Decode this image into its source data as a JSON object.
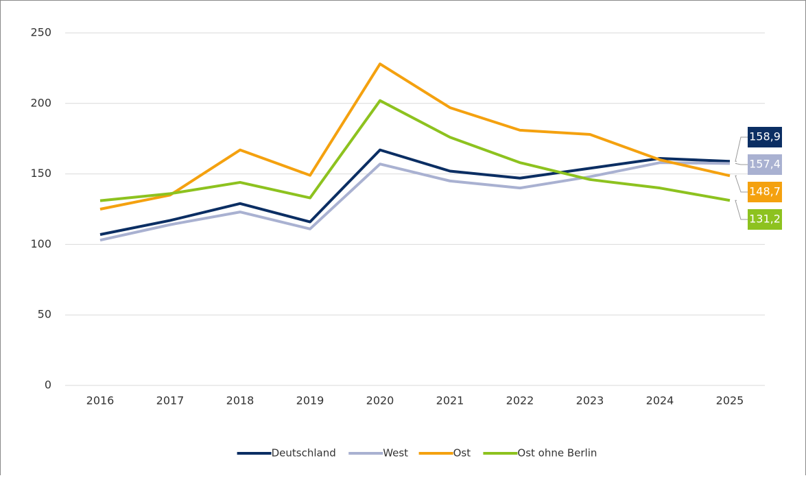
{
  "chart_data": {
    "type": "line",
    "categories": [
      "2016",
      "2017",
      "2018",
      "2019",
      "2020",
      "2021",
      "2022",
      "2023",
      "2024",
      "2025"
    ],
    "series": [
      {
        "name": "Deutschland",
        "color": "#0b2e63",
        "values": [
          107,
          117,
          129,
          116,
          167,
          152,
          147,
          154,
          161,
          158.9
        ],
        "value_labels": [
          null,
          null,
          null,
          null,
          null,
          null,
          null,
          null,
          null,
          "158,9"
        ]
      },
      {
        "name": "West",
        "color": "#a9b1d1",
        "values": [
          103,
          114,
          123,
          111,
          157,
          145,
          140,
          148,
          158,
          157.4
        ],
        "value_labels": [
          null,
          null,
          null,
          null,
          null,
          null,
          null,
          null,
          null,
          "157,4"
        ]
      },
      {
        "name": "Ost",
        "color": "#f4a10f",
        "values": [
          125,
          135,
          167,
          149,
          228,
          197,
          181,
          178,
          160,
          148.7
        ],
        "value_labels": [
          null,
          null,
          null,
          null,
          null,
          null,
          null,
          null,
          null,
          "148,7"
        ]
      },
      {
        "name": "Ost ohne Berlin",
        "color": "#8dc21f",
        "values": [
          131,
          136,
          144,
          133,
          202,
          176,
          158,
          146,
          140,
          131.2
        ],
        "value_labels": [
          null,
          null,
          null,
          null,
          null,
          null,
          null,
          null,
          null,
          "131,2"
        ]
      }
    ],
    "ylim": [
      0,
      250
    ],
    "yticks": [
      0,
      50,
      100,
      150,
      200,
      250
    ],
    "grid": true,
    "legend": "bottom"
  }
}
